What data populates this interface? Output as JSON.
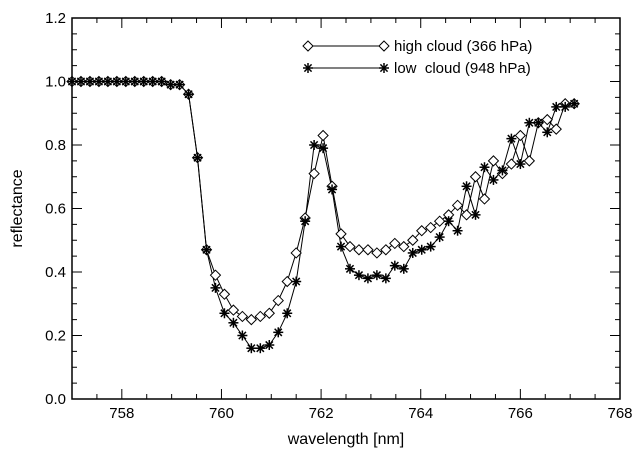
{
  "chart_data": {
    "type": "line",
    "xlabel": "wavelength [nm]",
    "ylabel": "reflectance",
    "xlim": [
      757,
      768
    ],
    "ylim": [
      0.0,
      1.2
    ],
    "xticks": [
      758,
      760,
      762,
      764,
      766,
      768
    ],
    "yticks": [
      0.0,
      0.2,
      0.4,
      0.6,
      0.8,
      1.0,
      1.2
    ],
    "x_tick_labels": [
      "758",
      "760",
      "762",
      "764",
      "766",
      "768"
    ],
    "y_tick_labels": [
      "0.0",
      "0.2",
      "0.4",
      "0.6",
      "0.8",
      "1.0",
      "1.2"
    ],
    "grid": false,
    "legend_position": "top-right",
    "x": [
      757.0,
      757.18,
      757.36,
      757.54,
      757.72,
      757.9,
      758.08,
      758.26,
      758.44,
      758.62,
      758.8,
      758.98,
      759.16,
      759.34,
      759.52,
      759.7,
      759.88,
      760.06,
      760.24,
      760.42,
      760.6,
      760.78,
      760.96,
      761.14,
      761.32,
      761.5,
      761.68,
      761.86,
      762.04,
      762.22,
      762.4,
      762.58,
      762.76,
      762.94,
      763.12,
      763.3,
      763.48,
      763.66,
      763.84,
      764.02,
      764.2,
      764.38,
      764.56,
      764.74,
      764.92,
      765.1,
      765.28,
      765.46,
      765.64,
      765.82,
      766.0,
      766.18,
      766.36,
      766.54,
      766.72,
      766.9,
      767.08
    ],
    "series": [
      {
        "name": "high cloud (366 hPa)",
        "marker": "diamond",
        "values": [
          1.0,
          1.0,
          1.0,
          1.0,
          1.0,
          1.0,
          1.0,
          1.0,
          1.0,
          1.0,
          1.0,
          0.99,
          0.99,
          0.96,
          0.76,
          0.47,
          0.39,
          0.33,
          0.28,
          0.26,
          0.25,
          0.26,
          0.27,
          0.31,
          0.37,
          0.46,
          0.57,
          0.71,
          0.83,
          0.67,
          0.52,
          0.48,
          0.47,
          0.47,
          0.46,
          0.47,
          0.49,
          0.48,
          0.5,
          0.53,
          0.54,
          0.56,
          0.58,
          0.61,
          0.58,
          0.7,
          0.63,
          0.75,
          0.71,
          0.74,
          0.83,
          0.75,
          0.87,
          0.88,
          0.85,
          0.93,
          0.93
        ]
      },
      {
        "name": "low  cloud (948 hPa)",
        "marker": "asterisk",
        "values": [
          1.0,
          1.0,
          1.0,
          1.0,
          1.0,
          1.0,
          1.0,
          1.0,
          1.0,
          1.0,
          1.0,
          0.99,
          0.99,
          0.96,
          0.76,
          0.47,
          0.35,
          0.27,
          0.24,
          0.2,
          0.16,
          0.16,
          0.17,
          0.21,
          0.27,
          0.37,
          0.56,
          0.8,
          0.79,
          0.66,
          0.48,
          0.41,
          0.39,
          0.38,
          0.39,
          0.38,
          0.42,
          0.41,
          0.46,
          0.47,
          0.48,
          0.51,
          0.56,
          0.53,
          0.67,
          0.58,
          0.73,
          0.69,
          0.72,
          0.82,
          0.74,
          0.87,
          0.87,
          0.84,
          0.92,
          0.92,
          0.93
        ]
      }
    ]
  }
}
